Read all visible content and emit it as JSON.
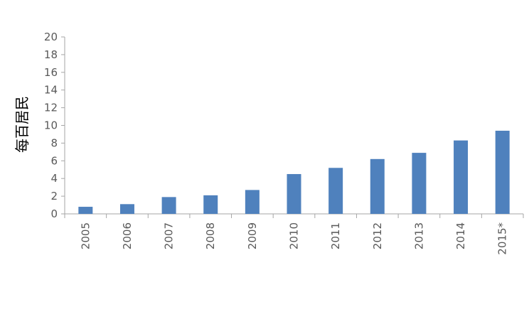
{
  "chart_data": {
    "type": "bar",
    "categories": [
      "2005",
      "2006",
      "2007",
      "2008",
      "2009",
      "2010",
      "2011",
      "2012",
      "2013",
      "2014",
      "2015*"
    ],
    "values": [
      0.8,
      1.1,
      1.9,
      2.1,
      2.7,
      4.5,
      5.2,
      6.2,
      6.9,
      8.3,
      9.4
    ],
    "title": "",
    "xlabel": "",
    "ylabel": "每百居民",
    "ylim": [
      0,
      20
    ],
    "yticks": [
      0,
      2,
      4,
      6,
      8,
      10,
      12,
      14,
      16,
      18,
      20
    ],
    "grid": false,
    "legend": "none",
    "colors": {
      "bar": "#4f81bd",
      "axis": "#a6a6a6",
      "text": "#595959"
    }
  }
}
